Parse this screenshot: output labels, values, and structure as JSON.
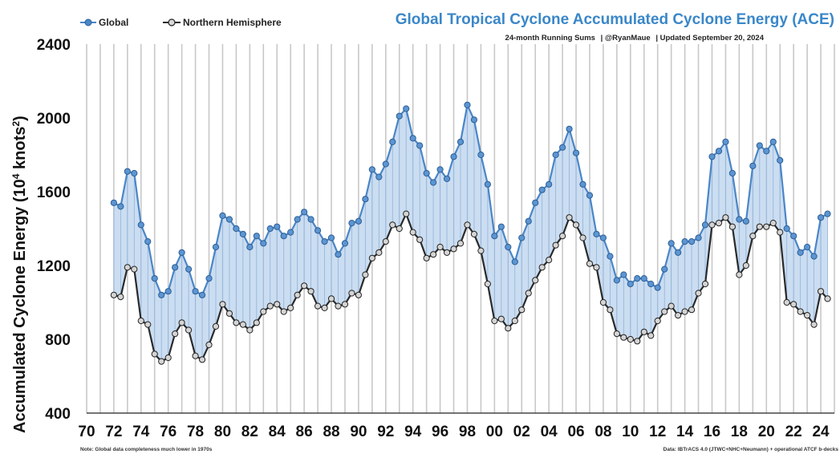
{
  "chart_data": {
    "type": "line",
    "title": "Global Tropical Cyclone Accumulated Cyclone Energy (ACE)",
    "subtitle_parts": [
      "24-month Running Sums",
      "@RyanMaue",
      "Updated September 20, 2024"
    ],
    "ylabel_main": "Accumulated Cyclone Energy (10",
    "ylabel_sup": "4",
    "ylabel_mid": " knots",
    "ylabel_sup2": "2",
    "ylabel_end": ")",
    "xlabel": "",
    "ylim": [
      400,
      2400
    ],
    "xlim": [
      1970,
      2025
    ],
    "y_ticks": [
      "400",
      "800",
      "1200",
      "1600",
      "2000",
      "2400"
    ],
    "x_ticks": [
      "70",
      "72",
      "74",
      "76",
      "78",
      "80",
      "82",
      "84",
      "86",
      "88",
      "90",
      "92",
      "94",
      "96",
      "98",
      "00",
      "02",
      "04",
      "06",
      "08",
      "10",
      "12",
      "14",
      "16",
      "18",
      "20",
      "22",
      "24"
    ],
    "legend_position": "top-left",
    "grid": "vertical",
    "note": "Note: Global data completeness much lower in 1970s",
    "source": "Data: IBTrACS 4.0 (JTWC+NHC+Neumann) + operational ATCF b-decks",
    "colors": {
      "global": "#4a86c8",
      "nh": "#2a2a2a",
      "fill": "#b9d2ec",
      "title": "#3a87c8"
    },
    "series": [
      {
        "name": "Global",
        "x": [
          1972.0,
          1972.5,
          1973.0,
          1973.5,
          1974.0,
          1974.5,
          1975.0,
          1975.5,
          1976.0,
          1976.5,
          1977.0,
          1977.5,
          1978.0,
          1978.5,
          1979.0,
          1979.5,
          1980.0,
          1980.5,
          1981.0,
          1981.5,
          1982.0,
          1982.5,
          1983.0,
          1983.5,
          1984.0,
          1984.5,
          1985.0,
          1985.5,
          1986.0,
          1986.5,
          1987.0,
          1987.5,
          1988.0,
          1988.5,
          1989.0,
          1989.5,
          1990.0,
          1990.5,
          1991.0,
          1991.5,
          1992.0,
          1992.5,
          1993.0,
          1993.5,
          1994.0,
          1994.5,
          1995.0,
          1995.5,
          1996.0,
          1996.5,
          1997.0,
          1997.5,
          1998.0,
          1998.5,
          1999.0,
          1999.5,
          2000.0,
          2000.5,
          2001.0,
          2001.5,
          2002.0,
          2002.5,
          2003.0,
          2003.5,
          2004.0,
          2004.5,
          2005.0,
          2005.5,
          2006.0,
          2006.5,
          2007.0,
          2007.5,
          2008.0,
          2008.5,
          2009.0,
          2009.5,
          2010.0,
          2010.5,
          2011.0,
          2011.5,
          2012.0,
          2012.5,
          2013.0,
          2013.5,
          2014.0,
          2014.5,
          2015.0,
          2015.5,
          2016.0,
          2016.5,
          2017.0,
          2017.5,
          2018.0,
          2018.5,
          2019.0,
          2019.5,
          2020.0,
          2020.5,
          2021.0,
          2021.5,
          2022.0,
          2022.5,
          2023.0,
          2023.5,
          2024.0,
          2024.5
        ],
        "values": [
          1540,
          1520,
          1710,
          1700,
          1420,
          1330,
          1130,
          1040,
          1060,
          1190,
          1270,
          1180,
          1060,
          1040,
          1130,
          1300,
          1470,
          1450,
          1400,
          1370,
          1300,
          1360,
          1320,
          1400,
          1410,
          1360,
          1380,
          1450,
          1490,
          1450,
          1390,
          1330,
          1350,
          1260,
          1320,
          1430,
          1440,
          1560,
          1720,
          1680,
          1750,
          1870,
          2010,
          2050,
          1890,
          1850,
          1700,
          1650,
          1720,
          1670,
          1790,
          1870,
          2070,
          1990,
          1800,
          1640,
          1360,
          1410,
          1300,
          1220,
          1350,
          1440,
          1540,
          1610,
          1640,
          1800,
          1840,
          1940,
          1810,
          1640,
          1580,
          1370,
          1350,
          1250,
          1120,
          1150,
          1100,
          1130,
          1130,
          1100,
          1080,
          1180,
          1320,
          1270,
          1330,
          1330,
          1350,
          1420,
          1790,
          1820,
          1870,
          1700,
          1450,
          1440,
          1740,
          1850,
          1820,
          1870,
          1770,
          1400,
          1360,
          1270,
          1300,
          1250,
          1460,
          1480
        ]
      },
      {
        "name": "Northern Hemisphere",
        "x": [
          1972.0,
          1972.5,
          1973.0,
          1973.5,
          1974.0,
          1974.5,
          1975.0,
          1975.5,
          1976.0,
          1976.5,
          1977.0,
          1977.5,
          1978.0,
          1978.5,
          1979.0,
          1979.5,
          1980.0,
          1980.5,
          1981.0,
          1981.5,
          1982.0,
          1982.5,
          1983.0,
          1983.5,
          1984.0,
          1984.5,
          1985.0,
          1985.5,
          1986.0,
          1986.5,
          1987.0,
          1987.5,
          1988.0,
          1988.5,
          1989.0,
          1989.5,
          1990.0,
          1990.5,
          1991.0,
          1991.5,
          1992.0,
          1992.5,
          1993.0,
          1993.5,
          1994.0,
          1994.5,
          1995.0,
          1995.5,
          1996.0,
          1996.5,
          1997.0,
          1997.5,
          1998.0,
          1998.5,
          1999.0,
          1999.5,
          2000.0,
          2000.5,
          2001.0,
          2001.5,
          2002.0,
          2002.5,
          2003.0,
          2003.5,
          2004.0,
          2004.5,
          2005.0,
          2005.5,
          2006.0,
          2006.5,
          2007.0,
          2007.5,
          2008.0,
          2008.5,
          2009.0,
          2009.5,
          2010.0,
          2010.5,
          2011.0,
          2011.5,
          2012.0,
          2012.5,
          2013.0,
          2013.5,
          2014.0,
          2014.5,
          2015.0,
          2015.5,
          2016.0,
          2016.5,
          2017.0,
          2017.5,
          2018.0,
          2018.5,
          2019.0,
          2019.5,
          2020.0,
          2020.5,
          2021.0,
          2021.5,
          2022.0,
          2022.5,
          2023.0,
          2023.5,
          2024.0,
          2024.5
        ],
        "values": [
          1040,
          1030,
          1190,
          1180,
          900,
          880,
          720,
          680,
          700,
          830,
          890,
          850,
          710,
          690,
          770,
          870,
          990,
          940,
          890,
          880,
          850,
          890,
          950,
          980,
          990,
          950,
          970,
          1040,
          1090,
          1060,
          980,
          970,
          1020,
          980,
          990,
          1050,
          1040,
          1150,
          1240,
          1270,
          1330,
          1420,
          1400,
          1480,
          1380,
          1340,
          1240,
          1260,
          1300,
          1270,
          1290,
          1320,
          1420,
          1370,
          1280,
          1100,
          900,
          910,
          860,
          900,
          960,
          1050,
          1120,
          1190,
          1230,
          1310,
          1360,
          1460,
          1420,
          1350,
          1210,
          1190,
          1000,
          960,
          830,
          810,
          800,
          790,
          840,
          820,
          900,
          950,
          980,
          930,
          950,
          960,
          1050,
          1100,
          1420,
          1430,
          1460,
          1410,
          1150,
          1200,
          1360,
          1410,
          1410,
          1430,
          1380,
          1000,
          990,
          950,
          930,
          880,
          1060,
          1020
        ]
      }
    ]
  }
}
